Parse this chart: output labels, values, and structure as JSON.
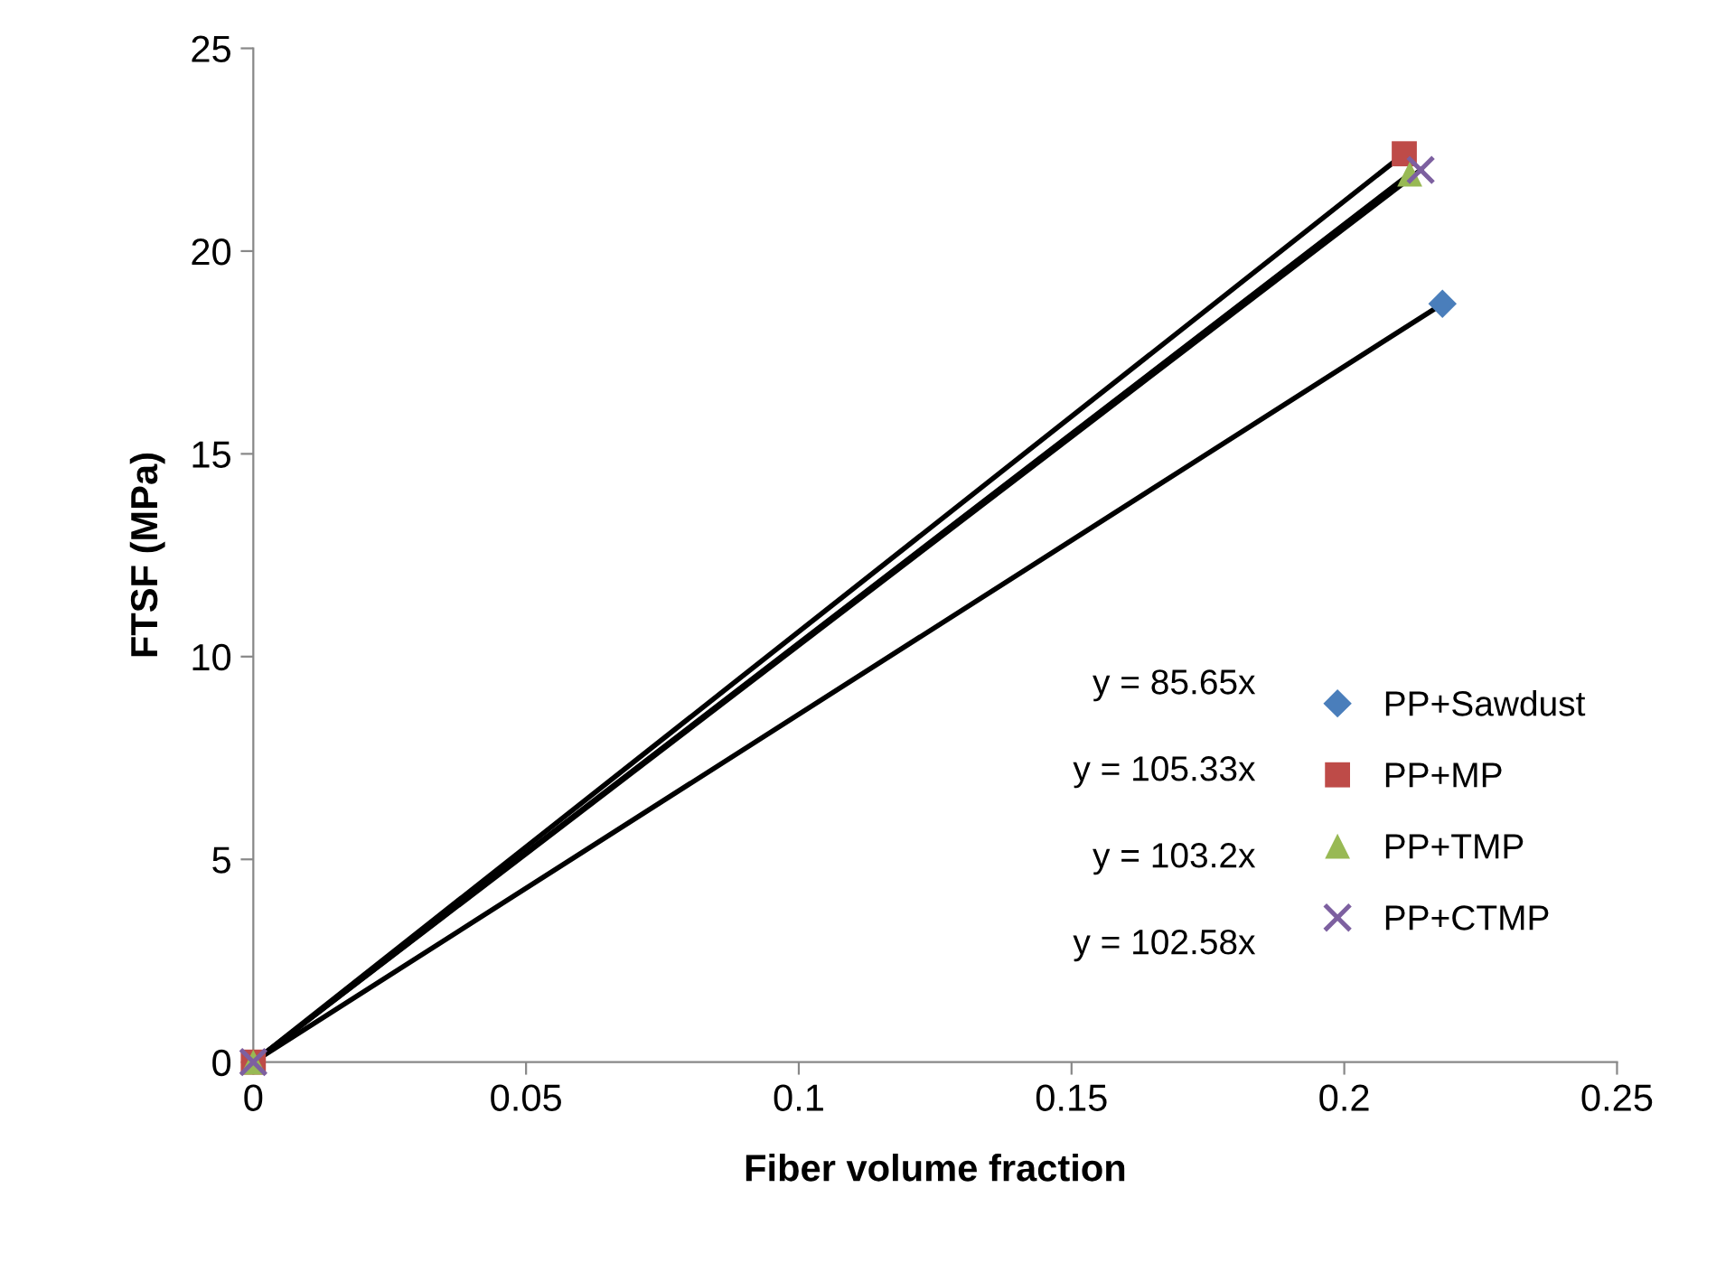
{
  "chart_data": {
    "type": "scatter",
    "xlabel": "Fiber volume fraction",
    "ylabel": "FTSF (MPa)",
    "xlim": [
      0,
      0.25
    ],
    "xticks": [
      0,
      0.05,
      0.1,
      0.15,
      0.2,
      0.25
    ],
    "ylim": [
      0,
      25
    ],
    "yticks": [
      0,
      5,
      10,
      15,
      20,
      25
    ],
    "grid": false,
    "legend": "right",
    "series": [
      {
        "name": "PP+Sawdust",
        "color": "#4a7ebb",
        "marker": "diamond",
        "x": [
          0.218
        ],
        "values": [
          18.7
        ]
      },
      {
        "name": "PP+MP",
        "color": "#be4b48",
        "marker": "square",
        "x": [
          0,
          0.211
        ],
        "values": [
          0,
          22.4
        ]
      },
      {
        "name": "PP+TMP",
        "color": "#98b954",
        "marker": "triangle",
        "x": [
          0,
          0.212
        ],
        "values": [
          0,
          21.9
        ]
      },
      {
        "name": "PP+CTMP",
        "color": "#7d60a0",
        "marker": "cross",
        "x": [
          0,
          0.214
        ],
        "values": [
          0,
          22.0
        ]
      },
      {
        "type": "line",
        "color": "#000000",
        "marker": "none",
        "x": [
          0,
          0.218
        ],
        "values": [
          0,
          18.7
        ]
      },
      {
        "type": "line",
        "color": "#000000",
        "marker": "none",
        "x": [
          0,
          0.211
        ],
        "values": [
          0,
          22.4
        ]
      },
      {
        "type": "line",
        "color": "#000000",
        "marker": "none",
        "x": [
          0,
          0.212
        ],
        "values": [
          0,
          21.9
        ]
      },
      {
        "type": "line",
        "color": "#000000",
        "marker": "none",
        "x": [
          0,
          0.214
        ],
        "values": [
          0,
          22.0
        ]
      }
    ],
    "annotations": [
      "y = 85.65x",
      "y = 105.33x",
      "y = 103.2x",
      "y = 102.58x"
    ]
  }
}
